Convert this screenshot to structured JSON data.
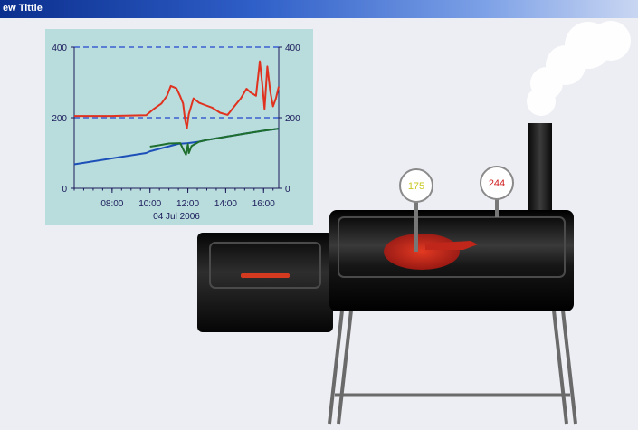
{
  "window": {
    "title": "ew Tittle"
  },
  "colors": {
    "background": "#edeef3",
    "chart_panel": "#b9dcdc",
    "grid_line": "#3a5fd0",
    "series_red": "#e0321e",
    "series_green": "#1e6e2e",
    "series_blue": "#1c4fb8",
    "smoker_body": "#111111",
    "fire": "#d0261a"
  },
  "gauges": {
    "meat": {
      "value": "175",
      "color": "#c8c820"
    },
    "pit": {
      "value": "244",
      "color": "#d02020"
    }
  },
  "chart_data": {
    "type": "line",
    "title": "",
    "xlabel": "04 Jul 2006",
    "ylabel": "",
    "ylim": [
      0,
      400
    ],
    "xlim": [
      6.0,
      16.8
    ],
    "y_ticks": [
      "0",
      "200",
      "400"
    ],
    "y2_ticks": [
      "0",
      "200",
      "400"
    ],
    "x_ticks": [
      "08:00",
      "10:00",
      "12:00",
      "14:00",
      "16:00"
    ],
    "x_tick_values": [
      8,
      10,
      12,
      14,
      16
    ],
    "grid": "dashed horizontal at 200 and 400",
    "series": [
      {
        "color": "#e0321e",
        "x": [
          6.0,
          8.0,
          9.8,
          10.2,
          10.6,
          10.9,
          11.1,
          11.4,
          11.6,
          11.75,
          11.85,
          11.95,
          12.05,
          12.3,
          12.6,
          12.9,
          13.3,
          13.7,
          14.1,
          14.5,
          14.8,
          15.1,
          15.3,
          15.6,
          15.8,
          15.95,
          16.05,
          16.2,
          16.35,
          16.5,
          16.65,
          16.8
        ],
        "y": [
          205,
          205,
          207,
          225,
          240,
          262,
          290,
          283,
          260,
          240,
          195,
          170,
          210,
          255,
          242,
          236,
          228,
          214,
          208,
          235,
          255,
          282,
          272,
          262,
          360,
          285,
          225,
          345,
          275,
          232,
          255,
          288
        ]
      },
      {
        "color": "#1c4fb8",
        "x": [
          6.0,
          9.8,
          10.0,
          11.5,
          12.0,
          12.6,
          13.0,
          14.0,
          15.0,
          16.0,
          16.8
        ],
        "y": [
          68,
          100,
          105,
          126,
          128,
          132,
          137,
          146,
          155,
          163,
          169
        ]
      },
      {
        "color": "#1e6e2e",
        "x": [
          10.0,
          10.5,
          11.0,
          11.6,
          11.8,
          11.9,
          12.0,
          12.05,
          12.2,
          12.6,
          13.0,
          14.0,
          15.0,
          16.0,
          16.8
        ],
        "y": [
          118,
          122,
          127,
          128,
          105,
          95,
          125,
          100,
          120,
          132,
          137,
          146,
          155,
          163,
          169
        ]
      }
    ]
  }
}
